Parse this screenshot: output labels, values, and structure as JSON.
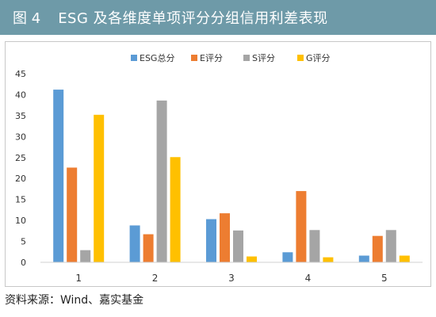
{
  "header": {
    "figure_no": "图 4",
    "title": "ESG 及各维度单项评分分组信用利差表现"
  },
  "source": "资料来源：Wind、嘉实基金",
  "colors": {
    "header_bg": "#6e9aa8"
  },
  "chart_data": {
    "type": "bar",
    "categories": [
      "1",
      "2",
      "3",
      "4",
      "5"
    ],
    "series": [
      {
        "name": "ESG总分",
        "color": "#5b9bd5",
        "values": [
          41.2,
          8.8,
          10.3,
          2.4,
          1.6
        ]
      },
      {
        "name": "E评分",
        "color": "#ed7d31",
        "values": [
          22.6,
          6.7,
          11.7,
          17.0,
          6.3
        ]
      },
      {
        "name": "S评分",
        "color": "#a5a5a5",
        "values": [
          2.9,
          38.6,
          7.6,
          7.7,
          7.7
        ]
      },
      {
        "name": "G评分",
        "color": "#ffc000",
        "values": [
          35.2,
          25.1,
          1.4,
          1.2,
          1.6
        ]
      }
    ],
    "ylim": [
      0,
      45
    ],
    "yticks": [
      "0",
      "5",
      "10",
      "15",
      "20",
      "25",
      "30",
      "35",
      "40",
      "45"
    ],
    "grid": false,
    "legend": "top-center"
  }
}
